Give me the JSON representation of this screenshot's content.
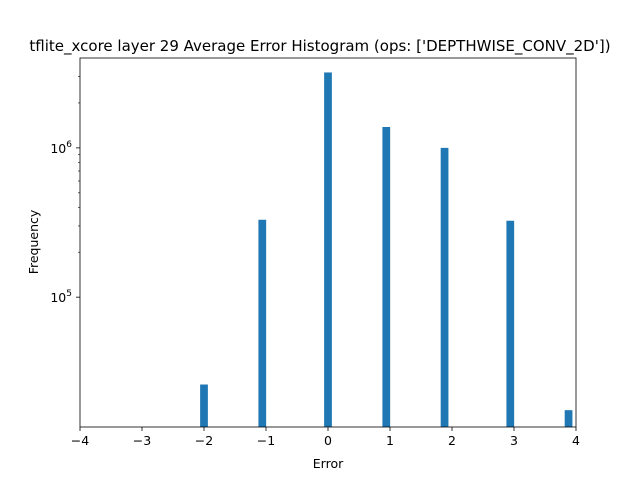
{
  "chart_data": {
    "type": "bar",
    "title": "tflite_xcore layer 29 Average Error Histogram (ops: ['DEPTHWISE_CONV_2D'])",
    "xlabel": "Error",
    "ylabel": "Frequency",
    "xlim": [
      -4,
      4
    ],
    "ylim": [
      13500,
      4000000
    ],
    "yscale": "log",
    "grid": false,
    "legend": "none",
    "bar_color": "#1f77b4",
    "bar_width": 0.125,
    "xticks": [
      -4,
      -3,
      -2,
      -1,
      0,
      1,
      2,
      3,
      4
    ],
    "xtick_labels": [
      "−4",
      "−3",
      "−2",
      "−1",
      "0",
      "1",
      "2",
      "3",
      "4"
    ],
    "yticks": [
      {
        "value": 100000,
        "base": "10",
        "exp": "5"
      },
      {
        "value": 1000000,
        "base": "10",
        "exp": "6"
      }
    ],
    "bars": [
      {
        "x": -2.0,
        "value": 26000
      },
      {
        "x": -1.06,
        "value": 330000
      },
      {
        "x": 0.0,
        "value": 3200000
      },
      {
        "x": 0.94,
        "value": 1380000
      },
      {
        "x": 1.88,
        "value": 1000000
      },
      {
        "x": 2.94,
        "value": 325000
      },
      {
        "x": 3.88,
        "value": 17500
      }
    ]
  }
}
